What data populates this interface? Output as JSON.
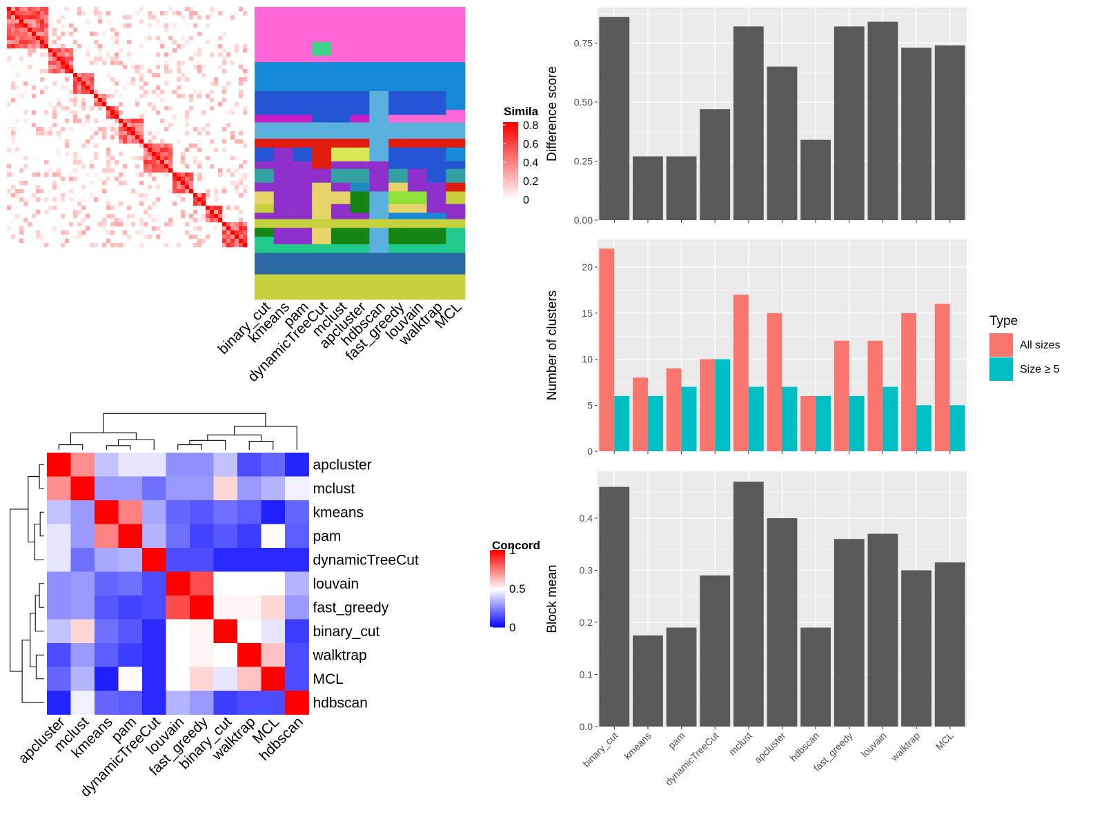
{
  "methods": [
    "binary_cut",
    "kmeans",
    "pam",
    "dynamicTreeCut",
    "mclust",
    "apcluster",
    "hdbscan",
    "fast_greedy",
    "louvain",
    "walktrap",
    "MCL"
  ],
  "colors": {
    "panel_bg": "#EBEBEB",
    "grid": "#FFFFFF",
    "bar_grey": "#595959",
    "all_sizes": "#F8766D",
    "size_ge5": "#00BFC4",
    "heat_red": "#FF0000",
    "heat_blue": "#0000FF"
  },
  "similarity_heatmap": {
    "legend_title": "Simila",
    "legend_ticks": [
      "0.8",
      "0.6",
      "0.4",
      "0.2",
      "0"
    ]
  },
  "cluster_labels_panel": {
    "column_labels": [
      "binary_cut",
      "kmeans",
      "pam",
      "dynamicTreeCut",
      "mclust",
      "apcluster",
      "hdbscan",
      "fast_greedy",
      "louvain",
      "walktrap",
      "MCL"
    ]
  },
  "concordance_heatmap": {
    "legend_title": "Concord",
    "legend_ticks": [
      "1",
      "0.5",
      "0"
    ],
    "order": [
      "apcluster",
      "mclust",
      "kmeans",
      "pam",
      "dynamicTreeCut",
      "louvain",
      "fast_greedy",
      "binary_cut",
      "walktrap",
      "MCL",
      "hdbscan"
    ],
    "values": [
      [
        1.0,
        0.72,
        0.38,
        0.45,
        0.45,
        0.28,
        0.28,
        0.38,
        0.15,
        0.2,
        0.07
      ],
      [
        0.72,
        1.0,
        0.3,
        0.3,
        0.22,
        0.3,
        0.3,
        0.58,
        0.3,
        0.35,
        0.47
      ],
      [
        0.38,
        0.3,
        1.0,
        0.75,
        0.33,
        0.2,
        0.17,
        0.22,
        0.18,
        0.06,
        0.2
      ],
      [
        0.45,
        0.3,
        0.75,
        1.0,
        0.35,
        0.22,
        0.13,
        0.17,
        0.12,
        0.51,
        0.18
      ],
      [
        0.45,
        0.22,
        0.33,
        0.35,
        1.0,
        0.15,
        0.15,
        0.08,
        0.08,
        0.08,
        0.08
      ],
      [
        0.28,
        0.3,
        0.2,
        0.22,
        0.15,
        1.0,
        0.85,
        0.5,
        0.5,
        0.5,
        0.35
      ],
      [
        0.28,
        0.3,
        0.17,
        0.13,
        0.15,
        0.85,
        1.0,
        0.52,
        0.52,
        0.58,
        0.3
      ],
      [
        0.38,
        0.58,
        0.22,
        0.17,
        0.08,
        0.5,
        0.52,
        1.0,
        0.5,
        0.45,
        0.12
      ],
      [
        0.15,
        0.3,
        0.18,
        0.12,
        0.08,
        0.5,
        0.52,
        0.5,
        1.0,
        0.62,
        0.15
      ],
      [
        0.2,
        0.35,
        0.06,
        0.51,
        0.08,
        0.5,
        0.58,
        0.45,
        0.62,
        1.0,
        0.15
      ],
      [
        0.07,
        0.47,
        0.2,
        0.18,
        0.08,
        0.35,
        0.3,
        0.12,
        0.15,
        0.15,
        1.0
      ]
    ]
  },
  "chart_data": [
    {
      "type": "bar",
      "categories": [
        "binary_cut",
        "kmeans",
        "pam",
        "dynamicTreeCut",
        "mclust",
        "apcluster",
        "hdbscan",
        "fast_greedy",
        "louvain",
        "walktrap",
        "MCL"
      ],
      "values": [
        0.86,
        0.27,
        0.27,
        0.47,
        0.82,
        0.65,
        0.34,
        0.82,
        0.84,
        0.73,
        0.74
      ],
      "ylabel": "Difference score",
      "yticks": [
        "0.00",
        "0.25",
        "0.50",
        "0.75"
      ],
      "ylim": [
        0,
        0.9
      ]
    },
    {
      "type": "bar",
      "categories": [
        "binary_cut",
        "kmeans",
        "pam",
        "dynamicTreeCut",
        "mclust",
        "apcluster",
        "hdbscan",
        "fast_greedy",
        "louvain",
        "walktrap",
        "MCL"
      ],
      "series": [
        {
          "name": "All sizes",
          "values": [
            22,
            8,
            9,
            10,
            17,
            15,
            6,
            12,
            12,
            15,
            16
          ]
        },
        {
          "name": "Size ≥ 5",
          "values": [
            6,
            6,
            7,
            10,
            7,
            7,
            6,
            6,
            7,
            5,
            5
          ]
        }
      ],
      "ylabel": "Number of clusters",
      "yticks": [
        "0",
        "5",
        "10",
        "15",
        "20"
      ],
      "ylim": [
        0,
        23
      ],
      "legend_title": "Type",
      "legend_position": "right"
    },
    {
      "type": "bar",
      "categories": [
        "binary_cut",
        "kmeans",
        "pam",
        "dynamicTreeCut",
        "mclust",
        "apcluster",
        "hdbscan",
        "fast_greedy",
        "louvain",
        "walktrap",
        "MCL"
      ],
      "values": [
        0.46,
        0.175,
        0.19,
        0.29,
        0.47,
        0.4,
        0.19,
        0.36,
        0.37,
        0.3,
        0.315
      ],
      "ylabel": "Block mean",
      "yticks": [
        "0.0",
        "0.1",
        "0.2",
        "0.3",
        "0.4"
      ],
      "ylim": [
        0,
        0.49
      ]
    }
  ]
}
